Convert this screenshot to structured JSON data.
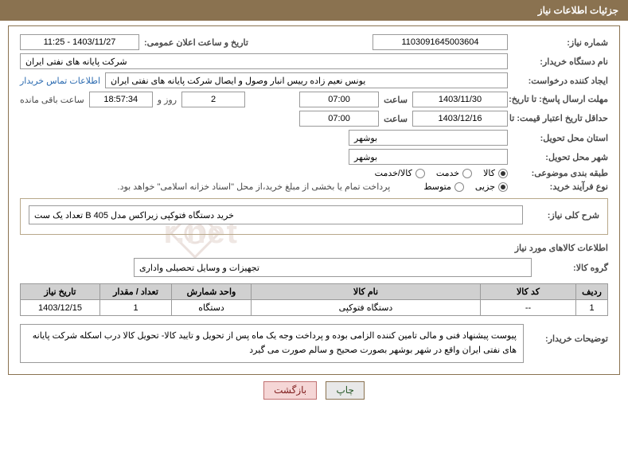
{
  "header": {
    "title": "جزئیات اطلاعات نیاز"
  },
  "fields": {
    "need_number_label": "شماره نیاز:",
    "need_number": "1103091645003604",
    "announce_label": "تاریخ و ساعت اعلان عمومی:",
    "announce_value": "1403/11/27 - 11:25",
    "buyer_org_label": "نام دستگاه خریدار:",
    "buyer_org": "شرکت پایانه های نفتی ایران",
    "requester_label": "ایجاد کننده درخواست:",
    "requester": "یونس نعیم زاده رییس انبار وصول و ایصال شرکت پایانه های نفتی ایران",
    "contact_link": "اطلاعات تماس خریدار",
    "deadline_label": "مهلت ارسال پاسخ: تا تاریخ:",
    "deadline_date": "1403/11/30",
    "hour_label": "ساعت",
    "deadline_hour": "07:00",
    "days": "2",
    "days_and": "روز و",
    "time_left": "18:57:34",
    "time_left_suffix": "ساعت باقی مانده",
    "validity_label": "حداقل تاریخ اعتبار قیمت: تا تاریخ:",
    "validity_date": "1403/12/16",
    "validity_hour": "07:00",
    "province_label": "استان محل تحویل:",
    "province": "بوشهر",
    "city_label": "شهر محل تحویل:",
    "city": "بوشهر",
    "category_label": "طبقه بندی موضوعی:",
    "purchase_type_label": "نوع فرآیند خرید:",
    "payment_note": "پرداخت تمام یا بخشی از مبلغ خرید،از محل \"اسناد خزانه اسلامی\" خواهد بود."
  },
  "radios": {
    "category": {
      "options": [
        "کالا",
        "خدمت",
        "کالا/خدمت"
      ],
      "selected": 0
    },
    "purchase": {
      "options": [
        "جزیی",
        "متوسط"
      ],
      "selected": 0
    }
  },
  "summary": {
    "desc_label": "شرح کلی نیاز:",
    "desc_value": "خرید دستگاه فتوکپی زیراکس مدل B 405 تعداد یک ست",
    "goods_section_title": "اطلاعات کالاهای مورد نیاز",
    "goods_group_label": "گروه کالا:",
    "goods_group_value": "تجهیزات و وسایل تحصیلی واداری"
  },
  "table": {
    "headers": [
      "ردیف",
      "کد کالا",
      "نام کالا",
      "واحد شمارش",
      "تعداد / مقدار",
      "تاریخ نیاز"
    ],
    "rows": [
      [
        "1",
        "--",
        "دستگاه فتوکپی",
        "دستگاه",
        "1",
        "1403/12/15"
      ]
    ],
    "col_widths": [
      "40px",
      "120px",
      "auto",
      "100px",
      "90px",
      "100px"
    ]
  },
  "buyer_note": {
    "label": "توضیحات خریدار:",
    "text": "پیوست پیشنهاد فنی و مالی تامین کننده الزامی بوده و پرداخت وجه یک ماه پس از تحویل و تایید کالا- تحویل کالا درب اسکله شرکت پایانه های نفتی ایران واقع در شهر بوشهر بصورت صحیح و سالم صورت می گیرد"
  },
  "buttons": {
    "print": "چاپ",
    "back": "بازگشت"
  },
  "colors": {
    "header_bg": "#8a7250",
    "border": "#9a9a9a",
    "link": "#2a6ab0",
    "th_bg": "#d0d0d0"
  }
}
